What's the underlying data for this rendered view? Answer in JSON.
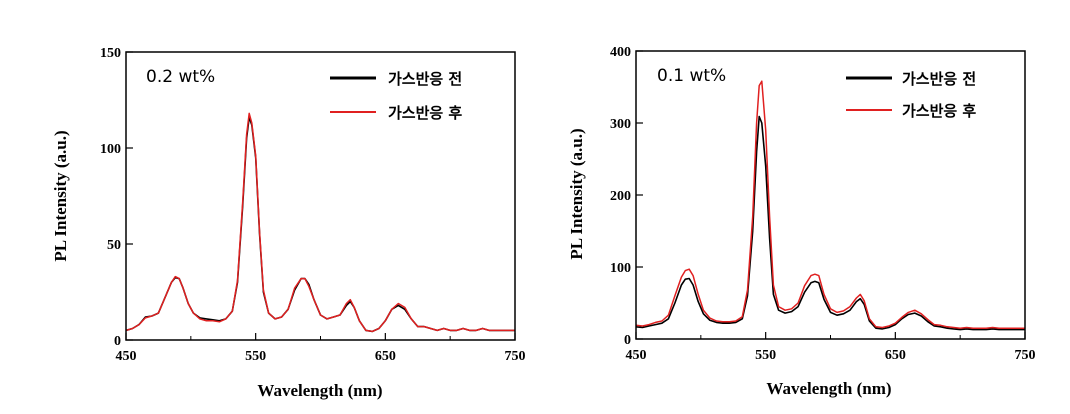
{
  "chart_data": [
    {
      "type": "line",
      "annotation": "0.2 wt%",
      "xlabel": "Wavelength (nm)",
      "ylabel": "PL Intensity (a.u.)",
      "xlim": [
        450,
        750
      ],
      "ylim": [
        0,
        150
      ],
      "xticks": [
        450,
        550,
        650,
        750
      ],
      "yticks": [
        0,
        50,
        100,
        150
      ],
      "grid": false,
      "legend_position": "top-right",
      "series": [
        {
          "name": "가스반응 전",
          "color": "#000000",
          "x": [
            450,
            455,
            460,
            465,
            470,
            475,
            480,
            485,
            488,
            491,
            494,
            498,
            502,
            507,
            512,
            517,
            522,
            527,
            532,
            536,
            540,
            543,
            545,
            547,
            550,
            553,
            556,
            560,
            565,
            570,
            575,
            580,
            585,
            588,
            591,
            595,
            600,
            605,
            610,
            615,
            620,
            623,
            626,
            630,
            635,
            640,
            645,
            650,
            655,
            660,
            665,
            670,
            675,
            680,
            685,
            690,
            695,
            700,
            705,
            710,
            715,
            720,
            725,
            730,
            735,
            740,
            745,
            750
          ],
          "y": [
            5,
            6,
            8,
            12,
            12.5,
            14,
            22,
            30,
            32.5,
            32,
            27,
            19,
            14,
            11.5,
            11,
            10.5,
            10,
            11,
            15,
            30,
            70,
            105,
            116,
            112,
            95,
            55,
            25,
            14,
            11,
            12,
            16,
            26,
            32,
            32,
            29,
            21,
            13,
            11,
            12,
            13,
            18,
            20,
            17,
            10,
            5,
            4.5,
            6,
            10,
            16,
            18,
            16,
            11,
            7,
            7,
            6,
            5,
            6,
            5,
            5,
            6,
            5,
            5,
            6,
            5,
            5,
            5,
            5,
            5
          ]
        },
        {
          "name": "가스반응 후",
          "color": "#e02020",
          "x": [
            450,
            455,
            460,
            465,
            470,
            475,
            480,
            485,
            488,
            491,
            494,
            498,
            502,
            507,
            512,
            517,
            522,
            527,
            532,
            536,
            540,
            543,
            545,
            547,
            550,
            553,
            556,
            560,
            565,
            570,
            575,
            580,
            585,
            588,
            591,
            595,
            600,
            605,
            610,
            615,
            620,
            623,
            626,
            630,
            635,
            640,
            645,
            650,
            655,
            660,
            665,
            670,
            675,
            680,
            685,
            690,
            695,
            700,
            705,
            710,
            715,
            720,
            725,
            730,
            735,
            740,
            745,
            750
          ],
          "y": [
            5,
            6,
            8,
            11.5,
            12.5,
            14,
            22,
            30,
            33,
            32,
            27,
            19,
            14,
            11,
            10,
            10,
            9.5,
            11,
            15,
            31,
            72,
            107,
            118,
            113,
            96,
            56,
            26,
            14,
            11,
            12,
            16,
            27,
            32,
            32,
            28,
            21,
            13,
            11,
            12,
            13,
            19,
            21,
            17,
            10,
            5,
            4.5,
            6,
            10,
            16,
            19,
            17,
            11,
            7,
            7,
            6,
            5,
            6,
            5,
            5,
            6,
            5,
            5,
            6,
            5,
            5,
            5,
            5,
            5
          ]
        }
      ]
    },
    {
      "type": "line",
      "annotation": "0.1 wt%",
      "xlabel": "Wavelength (nm)",
      "ylabel": "PL Intensity (a.u.)",
      "xlim": [
        450,
        750
      ],
      "ylim": [
        0,
        400
      ],
      "xticks": [
        450,
        550,
        650,
        750
      ],
      "yticks": [
        0,
        100,
        200,
        300,
        400
      ],
      "grid": false,
      "legend_position": "top-right",
      "series": [
        {
          "name": "가스반응 전",
          "color": "#000000",
          "x": [
            450,
            455,
            460,
            465,
            470,
            475,
            480,
            485,
            488,
            491,
            494,
            498,
            502,
            507,
            512,
            517,
            522,
            527,
            532,
            536,
            540,
            543,
            545,
            547,
            550,
            553,
            556,
            560,
            565,
            570,
            575,
            580,
            585,
            588,
            591,
            595,
            600,
            605,
            610,
            615,
            620,
            623,
            626,
            630,
            635,
            640,
            645,
            650,
            655,
            660,
            665,
            670,
            675,
            680,
            685,
            690,
            695,
            700,
            705,
            710,
            715,
            720,
            725,
            730,
            735,
            740,
            745,
            750
          ],
          "y": [
            17,
            16,
            18,
            20,
            22,
            28,
            50,
            75,
            83,
            84,
            75,
            52,
            35,
            26,
            23,
            22,
            22,
            23,
            28,
            60,
            150,
            260,
            309,
            300,
            240,
            140,
            62,
            40,
            36,
            38,
            45,
            65,
            78,
            80,
            78,
            55,
            37,
            33,
            35,
            40,
            52,
            56,
            48,
            25,
            15,
            14,
            16,
            20,
            28,
            34,
            36,
            32,
            24,
            18,
            17,
            15,
            14,
            13,
            14,
            13,
            13,
            13,
            14,
            13,
            13,
            13,
            13,
            13
          ]
        },
        {
          "name": "가스반응 후",
          "color": "#e02020",
          "x": [
            450,
            455,
            460,
            465,
            470,
            475,
            480,
            485,
            488,
            491,
            494,
            498,
            502,
            507,
            512,
            517,
            522,
            527,
            532,
            536,
            540,
            543,
            545,
            547,
            550,
            553,
            556,
            560,
            565,
            570,
            575,
            580,
            585,
            588,
            591,
            595,
            600,
            605,
            610,
            615,
            620,
            623,
            626,
            630,
            635,
            640,
            645,
            650,
            655,
            660,
            665,
            670,
            675,
            680,
            685,
            690,
            695,
            700,
            705,
            710,
            715,
            720,
            725,
            730,
            735,
            740,
            745,
            750
          ],
          "y": [
            19,
            18,
            20,
            23,
            25,
            33,
            60,
            86,
            95,
            97,
            88,
            62,
            40,
            29,
            25,
            24,
            24,
            25,
            31,
            68,
            170,
            300,
            352,
            358,
            290,
            170,
            75,
            45,
            40,
            42,
            50,
            74,
            88,
            90,
            88,
            62,
            42,
            37,
            39,
            45,
            57,
            62,
            53,
            28,
            17,
            16,
            18,
            22,
            30,
            37,
            40,
            35,
            27,
            20,
            19,
            17,
            16,
            15,
            16,
            15,
            15,
            15,
            16,
            15,
            15,
            15,
            15,
            15
          ]
        }
      ]
    }
  ]
}
